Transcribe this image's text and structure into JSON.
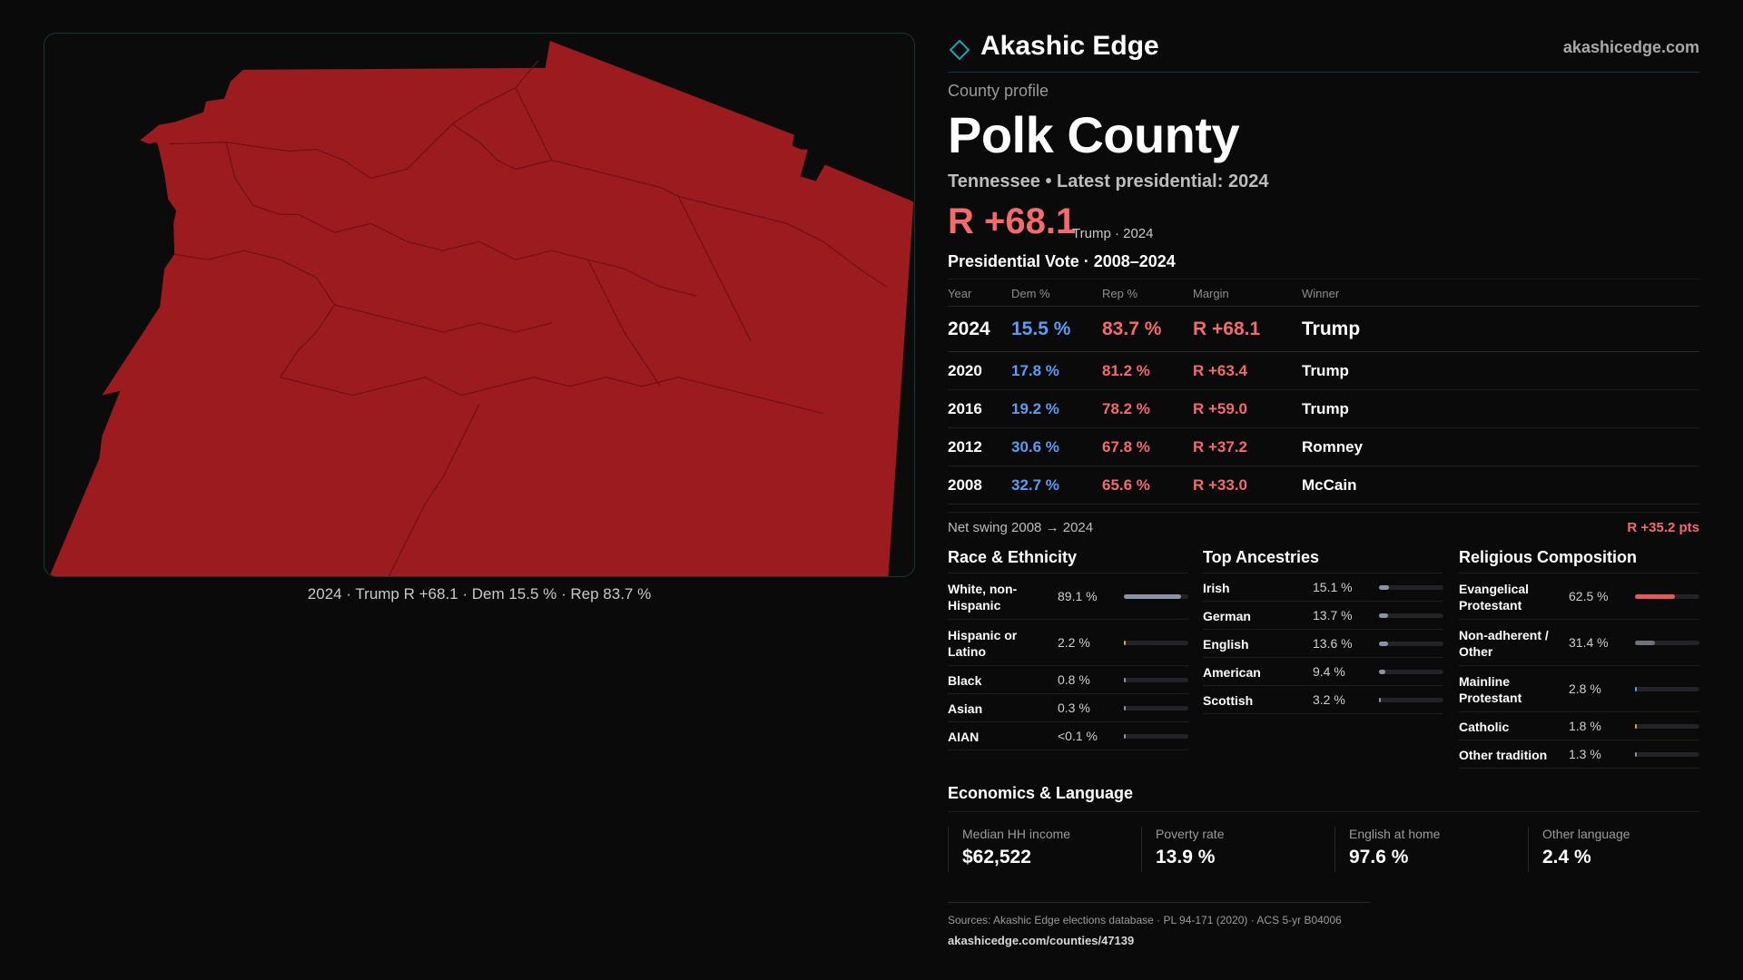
{
  "brand": {
    "name": "Akashic Edge",
    "url": "akashicedge.com"
  },
  "map": {
    "caption": "2024 · Trump R +68.1 · Dem 15.5 % · Rep 83.7 %",
    "fill_color": "#9c1b1f",
    "border_color": "#16383d"
  },
  "profile": {
    "eyebrow": "County profile",
    "title": "Polk County",
    "subtitle": "Tennessee • Latest presidential: 2024",
    "margin": "R +68.1",
    "margin_note": "Trump · 2024"
  },
  "vote_section": {
    "title": "Presidential Vote · 2008–2024",
    "headers": {
      "year": "Year",
      "dem": "Dem %",
      "rep": "Rep %",
      "margin": "Margin",
      "winner": "Winner"
    },
    "rows": [
      {
        "year": "2024",
        "dem": "15.5 %",
        "rep": "83.7 %",
        "margin": "R +68.1",
        "winner": "Trump"
      },
      {
        "year": "2020",
        "dem": "17.8 %",
        "rep": "81.2 %",
        "margin": "R +63.4",
        "winner": "Trump"
      },
      {
        "year": "2016",
        "dem": "19.2 %",
        "rep": "78.2 %",
        "margin": "R +59.0",
        "winner": "Trump"
      },
      {
        "year": "2012",
        "dem": "30.6 %",
        "rep": "67.8 %",
        "margin": "R +37.2",
        "winner": "Romney"
      },
      {
        "year": "2008",
        "dem": "32.7 %",
        "rep": "65.6 %",
        "margin": "R +33.0",
        "winner": "McCain"
      }
    ],
    "swing_label": "Net swing 2008 → 2024",
    "swing_value": "R +35.2 pts"
  },
  "race": {
    "title": "Race & Ethnicity",
    "rows": [
      {
        "label": "White, non-Hispanic",
        "value": "89.1 %",
        "fraction": 0.891,
        "color": "#8b93a7"
      },
      {
        "label": "Hispanic or Latino",
        "value": "2.2 %",
        "fraction": 0.022,
        "color": "#e0a43a"
      },
      {
        "label": "Black",
        "value": "0.8 %",
        "fraction": 0.008,
        "color": "#8b93a7"
      },
      {
        "label": "Asian",
        "value": "0.3 %",
        "fraction": 0.003,
        "color": "#8b93a7"
      },
      {
        "label": "AIAN",
        "value": "<0.1 %",
        "fraction": 0.0,
        "color": "#8b93a7"
      }
    ]
  },
  "ancestry": {
    "title": "Top Ancestries",
    "rows": [
      {
        "label": "Irish",
        "value": "15.1 %",
        "fraction": 0.151,
        "color": "#8b93a7"
      },
      {
        "label": "German",
        "value": "13.7 %",
        "fraction": 0.137,
        "color": "#8b93a7"
      },
      {
        "label": "English",
        "value": "13.6 %",
        "fraction": 0.136,
        "color": "#8b93a7"
      },
      {
        "label": "American",
        "value": "9.4 %",
        "fraction": 0.094,
        "color": "#8b93a7"
      },
      {
        "label": "Scottish",
        "value": "3.2 %",
        "fraction": 0.032,
        "color": "#8b93a7"
      }
    ]
  },
  "religion": {
    "title": "Religious Composition",
    "rows": [
      {
        "label": "Evangelical Protestant",
        "value": "62.5 %",
        "fraction": 0.625,
        "color": "#e35a5a"
      },
      {
        "label": "Non-adherent / Other",
        "value": "31.4 %",
        "fraction": 0.314,
        "color": "#6c7283"
      },
      {
        "label": "Mainline Protestant",
        "value": "2.8 %",
        "fraction": 0.028,
        "color": "#5c9cf5"
      },
      {
        "label": "Catholic",
        "value": "1.8 %",
        "fraction": 0.018,
        "color": "#e0a43a"
      },
      {
        "label": "Other tradition",
        "value": "1.3 %",
        "fraction": 0.013,
        "color": "#8b93a7"
      }
    ]
  },
  "economics": {
    "title": "Economics & Language",
    "cells": [
      {
        "label": "Median HH income",
        "value": "$62,522"
      },
      {
        "label": "Poverty rate",
        "value": "13.9 %"
      },
      {
        "label": "English at home",
        "value": "97.6 %"
      },
      {
        "label": "Other language",
        "value": "2.4 %"
      }
    ]
  },
  "footer": {
    "sources": "Sources: Akashic Edge elections database · PL 94-171 (2020) · ACS 5-yr B04006",
    "link": "akashicedge.com/counties/47139"
  }
}
